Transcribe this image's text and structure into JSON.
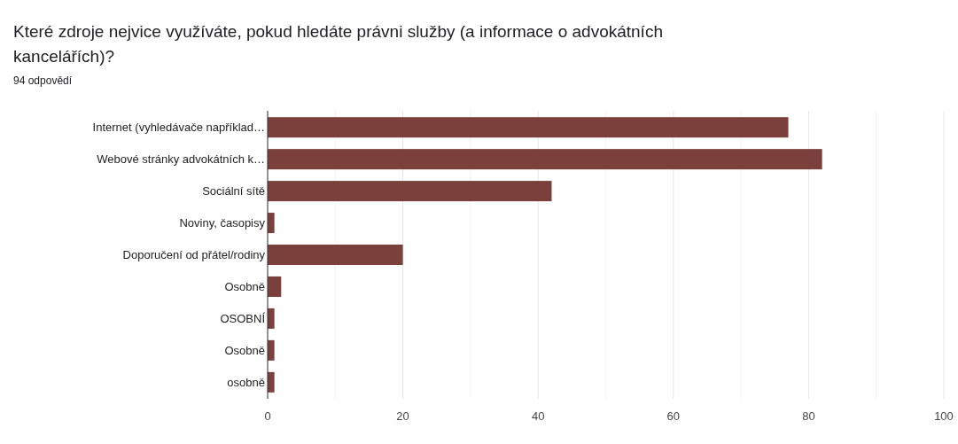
{
  "chart_data": {
    "type": "bar",
    "orientation": "horizontal",
    "title": "Které zdroje nejvice využíváte, pokud hledáte právni služby (a informace o advokátních kancelářích)?",
    "subtitle": "94 odpovědí",
    "categories": [
      "Internet (vyhledávače například…",
      "Webové stránky advokátních k…",
      "Sociální sítě",
      "Noviny, časopisy",
      "Doporučení od přátel/rodiny",
      "Osobně",
      "OSOBNÍ",
      "Osobně",
      "osobně"
    ],
    "values": [
      77,
      82,
      42,
      1,
      20,
      2,
      1,
      1,
      1
    ],
    "color": "#7b403b",
    "xlim": [
      0,
      100
    ],
    "xticks": [
      0,
      {
        "value": 10,
        "label": null
      },
      20,
      {
        "value": 30,
        "label": null
      },
      40,
      {
        "value": 50,
        "label": null
      },
      60,
      {
        "value": 70,
        "label": null
      },
      80,
      {
        "value": 90,
        "label": null
      },
      100
    ],
    "grid": "x"
  }
}
